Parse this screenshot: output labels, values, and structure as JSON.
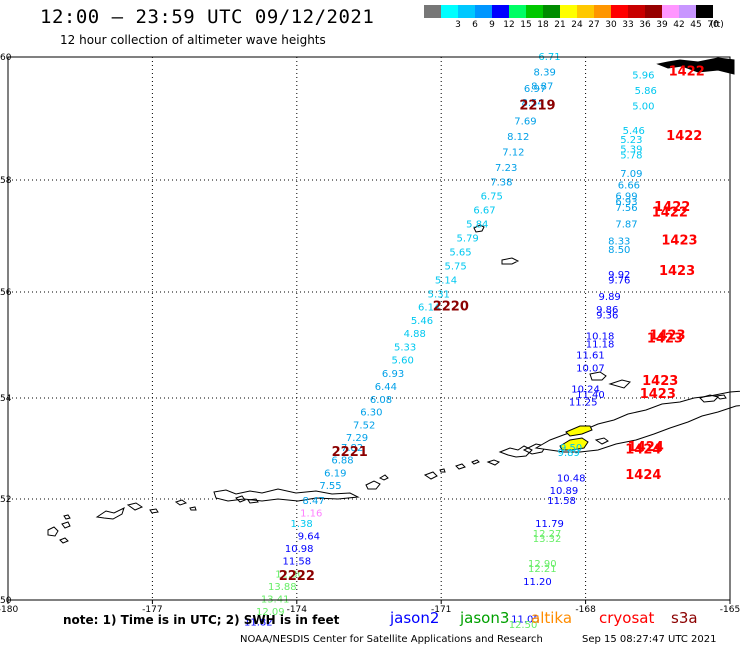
{
  "header": {
    "title": "12:00 — 23:59 UTC 09/12/2021",
    "subtitle": "12 hour collection of altimeter wave heights"
  },
  "legend": {
    "unit": "(ft)",
    "items": [
      {
        "label": "",
        "color": "#777777"
      },
      {
        "label": "3",
        "color": "#00ffff"
      },
      {
        "label": "6",
        "color": "#00c8ff"
      },
      {
        "label": "9",
        "color": "#0096ff"
      },
      {
        "label": "12",
        "color": "#0000ff"
      },
      {
        "label": "15",
        "color": "#00ff64"
      },
      {
        "label": "18",
        "color": "#00c800"
      },
      {
        "label": "21",
        "color": "#008c00"
      },
      {
        "label": "24",
        "color": "#ffff00"
      },
      {
        "label": "27",
        "color": "#ffc800"
      },
      {
        "label": "30",
        "color": "#ff9600"
      },
      {
        "label": "33",
        "color": "#ff0000"
      },
      {
        "label": "36",
        "color": "#c80000"
      },
      {
        "label": "39",
        "color": "#960000"
      },
      {
        "label": "42",
        "color": "#ff96ff"
      },
      {
        "label": "45",
        "color": "#c896ff"
      },
      {
        "label": "70",
        "color": "#000000"
      }
    ]
  },
  "map": {
    "lon_ticks": [
      "-180",
      "-177",
      "-174",
      "-171",
      "-168",
      "-165"
    ],
    "lat_ticks": [
      "50",
      "52",
      "54",
      "56",
      "58",
      "60"
    ],
    "colors": {
      "jason2": "#0000ff",
      "jason3": "#00a000",
      "altika": "#ff8c00",
      "cryosat": "#ff0000",
      "s3a": "#8b0000",
      "cyan": "#00c8f0",
      "lightblue": "#00a0e8",
      "lightgreen": "#66ee66",
      "pink": "#ff80ff",
      "yellow": "#ffff00",
      "land": "#000000"
    },
    "passes": [
      {
        "name": "s3a",
        "times": [
          {
            "text": "2219",
            "lon": -169.0,
            "lat": 59.15
          },
          {
            "text": "2220",
            "lon": -170.8,
            "lat": 55.65
          },
          {
            "text": "2221",
            "lon": -172.9,
            "lat": 52.85
          },
          {
            "text": "2222",
            "lon": -174.0,
            "lat": 50.4
          }
        ]
      },
      {
        "name": "cryosat",
        "times": [
          {
            "text": "1422",
            "lon": -165.9,
            "lat": 59.7
          },
          {
            "text": "1422",
            "lon": -165.95,
            "lat": 58.65
          },
          {
            "text": "1422",
            "lon": -166.2,
            "lat": 57.45
          },
          {
            "text": "1422",
            "lon": -166.25,
            "lat": 57.35
          },
          {
            "text": "1423",
            "lon": -166.05,
            "lat": 56.85
          },
          {
            "text": "1423",
            "lon": -166.1,
            "lat": 56.3
          },
          {
            "text": "1423",
            "lon": -166.3,
            "lat": 55.1
          },
          {
            "text": "1423",
            "lon": -166.35,
            "lat": 55.05
          },
          {
            "text": "1423",
            "lon": -166.45,
            "lat": 54.25
          },
          {
            "text": "1423",
            "lon": -166.5,
            "lat": 54.0
          },
          {
            "text": "1424",
            "lon": -166.75,
            "lat": 52.95
          },
          {
            "text": "1424",
            "lon": -166.8,
            "lat": 52.9
          },
          {
            "text": "1424",
            "lon": -166.8,
            "lat": 52.4
          }
        ]
      }
    ],
    "swh_values": [
      {
        "text": "6.71",
        "lon": -168.75,
        "lat": 59.95,
        "c": "cyan"
      },
      {
        "text": "8.39",
        "lon": -168.85,
        "lat": 59.7,
        "c": "lightblue"
      },
      {
        "text": "8.87",
        "lon": -168.9,
        "lat": 59.47,
        "c": "lightblue"
      },
      {
        "text": "6.97",
        "lon": -169.05,
        "lat": 59.43,
        "c": "lightblue"
      },
      {
        "text": "8.54",
        "lon": -169.1,
        "lat": 59.2,
        "c": "lightblue"
      },
      {
        "text": "7.69",
        "lon": -169.25,
        "lat": 58.9,
        "c": "lightblue"
      },
      {
        "text": "8.12",
        "lon": -169.4,
        "lat": 58.65,
        "c": "lightblue"
      },
      {
        "text": "7.12",
        "lon": -169.5,
        "lat": 58.4,
        "c": "lightblue"
      },
      {
        "text": "7.23",
        "lon": -169.65,
        "lat": 58.15,
        "c": "lightblue"
      },
      {
        "text": "7.38",
        "lon": -169.75,
        "lat": 57.9,
        "c": "lightblue"
      },
      {
        "text": "6.75",
        "lon": -169.95,
        "lat": 57.65,
        "c": "cyan"
      },
      {
        "text": "6.67",
        "lon": -170.1,
        "lat": 57.4,
        "c": "cyan"
      },
      {
        "text": "5.84",
        "lon": -170.25,
        "lat": 57.15,
        "c": "cyan"
      },
      {
        "text": "5.79",
        "lon": -170.45,
        "lat": 56.9,
        "c": "cyan"
      },
      {
        "text": "5.65",
        "lon": -170.6,
        "lat": 56.65,
        "c": "cyan"
      },
      {
        "text": "5.75",
        "lon": -170.7,
        "lat": 56.4,
        "c": "cyan"
      },
      {
        "text": "5.14",
        "lon": -170.9,
        "lat": 56.15,
        "c": "cyan"
      },
      {
        "text": "5.31",
        "lon": -171.05,
        "lat": 55.9,
        "c": "cyan"
      },
      {
        "text": "6.14",
        "lon": -171.25,
        "lat": 55.65,
        "c": "cyan"
      },
      {
        "text": "5.46",
        "lon": -171.4,
        "lat": 55.4,
        "c": "cyan"
      },
      {
        "text": "4.88",
        "lon": -171.55,
        "lat": 55.15,
        "c": "cyan"
      },
      {
        "text": "5.33",
        "lon": -171.75,
        "lat": 54.9,
        "c": "cyan"
      },
      {
        "text": "5.60",
        "lon": -171.8,
        "lat": 54.65,
        "c": "cyan"
      },
      {
        "text": "6.93",
        "lon": -172.0,
        "lat": 54.4,
        "c": "lightblue"
      },
      {
        "text": "6.44",
        "lon": -172.15,
        "lat": 54.15,
        "c": "lightblue"
      },
      {
        "text": "6.08",
        "lon": -172.25,
        "lat": 53.9,
        "c": "lightblue"
      },
      {
        "text": "6.30",
        "lon": -172.45,
        "lat": 53.65,
        "c": "lightblue"
      },
      {
        "text": "7.52",
        "lon": -172.6,
        "lat": 53.4,
        "c": "lightblue"
      },
      {
        "text": "7.29",
        "lon": -172.75,
        "lat": 53.15,
        "c": "lightblue"
      },
      {
        "text": "7.82",
        "lon": -172.85,
        "lat": 52.95,
        "c": "lightblue"
      },
      {
        "text": "6.88",
        "lon": -173.05,
        "lat": 52.7,
        "c": "lightblue"
      },
      {
        "text": "6.19",
        "lon": -173.2,
        "lat": 52.45,
        "c": "lightblue"
      },
      {
        "text": "7.55",
        "lon": -173.3,
        "lat": 52.2,
        "c": "lightblue"
      },
      {
        "text": "8.47",
        "lon": -173.65,
        "lat": 51.9,
        "c": "lightblue"
      },
      {
        "text": "1.16",
        "lon": -173.7,
        "lat": 51.65,
        "c": "pink"
      },
      {
        "text": "1.38",
        "lon": -173.9,
        "lat": 51.45,
        "c": "cyan"
      },
      {
        "text": "9.64",
        "lon": -173.75,
        "lat": 51.2,
        "c": "jason2"
      },
      {
        "text": "10.98",
        "lon": -173.95,
        "lat": 50.95,
        "c": "jason2"
      },
      {
        "text": "11.58",
        "lon": -174.0,
        "lat": 50.7,
        "c": "jason2"
      },
      {
        "text": "12.30",
        "lon": -174.15,
        "lat": 50.45,
        "c": "lightgreen"
      },
      {
        "text": "13.88",
        "lon": -174.3,
        "lat": 50.2,
        "c": "lightgreen"
      },
      {
        "text": "13.41",
        "lon": -174.45,
        "lat": 49.95,
        "c": "lightgreen"
      },
      {
        "text": "12.09",
        "lon": -174.55,
        "lat": 49.7,
        "c": "lightgreen"
      },
      {
        "text": "11.82",
        "lon": -174.8,
        "lat": 49.5,
        "c": "jason2"
      },
      {
        "text": "5.96",
        "lon": -166.8,
        "lat": 59.65,
        "c": "cyan"
      },
      {
        "text": "5.86",
        "lon": -166.75,
        "lat": 59.4,
        "c": "cyan"
      },
      {
        "text": "5.00",
        "lon": -166.8,
        "lat": 59.15,
        "c": "cyan"
      },
      {
        "text": "5.46",
        "lon": -167.0,
        "lat": 58.75,
        "c": "cyan"
      },
      {
        "text": "5.23",
        "lon": -167.05,
        "lat": 58.6,
        "c": "cyan"
      },
      {
        "text": "5.39",
        "lon": -167.05,
        "lat": 58.45,
        "c": "cyan"
      },
      {
        "text": "5.78",
        "lon": -167.05,
        "lat": 58.35,
        "c": "cyan"
      },
      {
        "text": "7.09",
        "lon": -167.05,
        "lat": 58.05,
        "c": "lightblue"
      },
      {
        "text": "6.66",
        "lon": -167.1,
        "lat": 57.85,
        "c": "lightblue"
      },
      {
        "text": "6.99",
        "lon": -167.15,
        "lat": 57.65,
        "c": "lightblue"
      },
      {
        "text": "6.93",
        "lon": -167.15,
        "lat": 57.55,
        "c": "lightblue"
      },
      {
        "text": "7.56",
        "lon": -167.15,
        "lat": 57.45,
        "c": "lightblue"
      },
      {
        "text": "7.87",
        "lon": -167.15,
        "lat": 57.15,
        "c": "lightblue"
      },
      {
        "text": "8.33",
        "lon": -167.3,
        "lat": 56.85,
        "c": "lightblue"
      },
      {
        "text": "8.50",
        "lon": -167.3,
        "lat": 56.7,
        "c": "lightblue"
      },
      {
        "text": "9.92",
        "lon": -167.3,
        "lat": 56.25,
        "c": "jason2"
      },
      {
        "text": "9.76",
        "lon": -167.3,
        "lat": 56.15,
        "c": "jason2"
      },
      {
        "text": "9.89",
        "lon": -167.5,
        "lat": 55.85,
        "c": "jason2"
      },
      {
        "text": "9.86",
        "lon": -167.55,
        "lat": 55.6,
        "c": "jason2"
      },
      {
        "text": "9.36",
        "lon": -167.55,
        "lat": 55.5,
        "c": "jason2"
      },
      {
        "text": "10.18",
        "lon": -167.7,
        "lat": 55.1,
        "c": "jason2"
      },
      {
        "text": "11.18",
        "lon": -167.7,
        "lat": 54.95,
        "c": "jason2"
      },
      {
        "text": "11.61",
        "lon": -167.9,
        "lat": 54.75,
        "c": "jason2"
      },
      {
        "text": "10.07",
        "lon": -167.9,
        "lat": 54.5,
        "c": "jason2"
      },
      {
        "text": "10.24",
        "lon": -168.0,
        "lat": 54.1,
        "c": "jason2"
      },
      {
        "text": "11.40",
        "lon": -167.9,
        "lat": 54.0,
        "c": "jason2"
      },
      {
        "text": "11.25",
        "lon": -168.05,
        "lat": 53.85,
        "c": "jason2"
      },
      {
        "text": "9.50",
        "lon": -168.3,
        "lat": 52.95,
        "c": "cyan"
      },
      {
        "text": "9.89",
        "lon": -168.35,
        "lat": 52.85,
        "c": "cyan"
      },
      {
        "text": "10.48",
        "lon": -168.3,
        "lat": 52.35,
        "c": "jason2"
      },
      {
        "text": "10.89",
        "lon": -168.45,
        "lat": 52.1,
        "c": "jason2"
      },
      {
        "text": "11.58",
        "lon": -168.5,
        "lat": 51.9,
        "c": "jason2"
      },
      {
        "text": "11.79",
        "lon": -168.75,
        "lat": 51.45,
        "c": "jason2"
      },
      {
        "text": "12.27",
        "lon": -168.8,
        "lat": 51.25,
        "c": "lightgreen"
      },
      {
        "text": "13.32",
        "lon": -168.8,
        "lat": 51.15,
        "c": "lightgreen"
      },
      {
        "text": "12.90",
        "lon": -168.9,
        "lat": 50.65,
        "c": "lightgreen"
      },
      {
        "text": "12.21",
        "lon": -168.9,
        "lat": 50.55,
        "c": "lightgreen"
      },
      {
        "text": "11.20",
        "lon": -169.0,
        "lat": 50.3,
        "c": "jason2"
      },
      {
        "text": "11.05",
        "lon": -169.25,
        "lat": 49.55,
        "c": "jason2"
      },
      {
        "text": "12.50",
        "lon": -169.3,
        "lat": 49.45,
        "c": "lightgreen"
      }
    ]
  },
  "footer": {
    "note": "note:  1) Time is in UTC;  2) SWH is in feet",
    "satellites": [
      {
        "name": "jason2",
        "color": "#0000ff"
      },
      {
        "name": "jason3",
        "color": "#00a000"
      },
      {
        "name": "altika",
        "color": "#ff8c00"
      },
      {
        "name": "cryosat",
        "color": "#ff0000"
      },
      {
        "name": "s3a",
        "color": "#8b0000"
      }
    ],
    "credit": "NOAA/NESDIS Center for Satellite Applications and Research",
    "stamp": "Sep 15 08:27:47 UTC 2021"
  }
}
